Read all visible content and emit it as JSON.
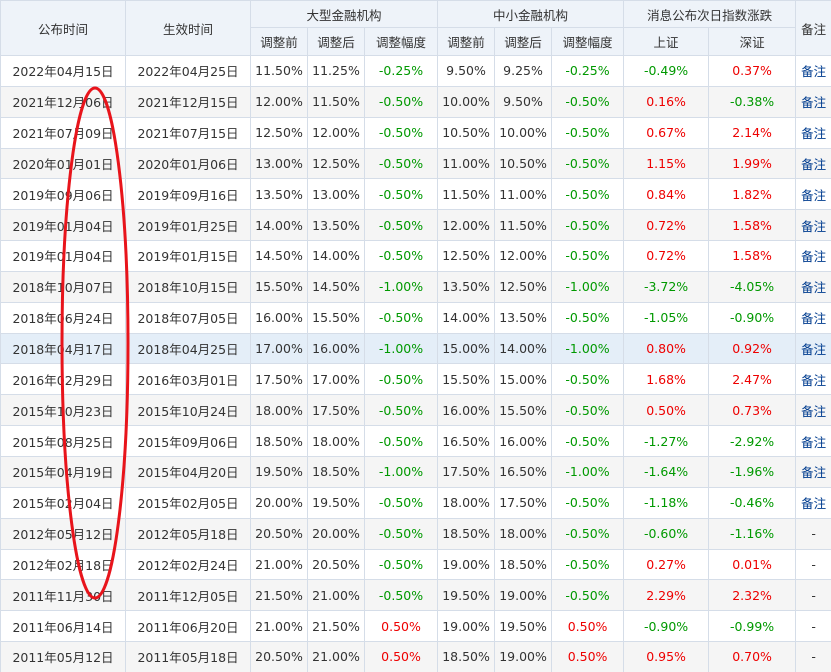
{
  "header": {
    "top": [
      "公布时间",
      "生效时间",
      "大型金融机构",
      "中小金融机构",
      "消息公布次日指数涨跌",
      "备注"
    ],
    "sub": [
      "调整前",
      "调整后",
      "调整幅度",
      "调整前",
      "调整后",
      "调整幅度",
      "上证",
      "深证"
    ]
  },
  "table": {
    "rows": [
      [
        "2022年04月15日",
        "2022年04月25日",
        "11.50%",
        "11.25%",
        "-0.25%",
        "9.50%",
        "9.25%",
        "-0.25%",
        "-0.49%",
        "0.37%",
        "备注"
      ],
      [
        "2021年12月06日",
        "2021年12月15日",
        "12.00%",
        "11.50%",
        "-0.50%",
        "10.00%",
        "9.50%",
        "-0.50%",
        "0.16%",
        "-0.38%",
        "备注"
      ],
      [
        "2021年07月09日",
        "2021年07月15日",
        "12.50%",
        "12.00%",
        "-0.50%",
        "10.50%",
        "10.00%",
        "-0.50%",
        "0.67%",
        "2.14%",
        "备注"
      ],
      [
        "2020年01月01日",
        "2020年01月06日",
        "13.00%",
        "12.50%",
        "-0.50%",
        "11.00%",
        "10.50%",
        "-0.50%",
        "1.15%",
        "1.99%",
        "备注"
      ],
      [
        "2019年09月06日",
        "2019年09月16日",
        "13.50%",
        "13.00%",
        "-0.50%",
        "11.50%",
        "11.00%",
        "-0.50%",
        "0.84%",
        "1.82%",
        "备注"
      ],
      [
        "2019年01月04日",
        "2019年01月25日",
        "14.00%",
        "13.50%",
        "-0.50%",
        "12.00%",
        "11.50%",
        "-0.50%",
        "0.72%",
        "1.58%",
        "备注"
      ],
      [
        "2019年01月04日",
        "2019年01月15日",
        "14.50%",
        "14.00%",
        "-0.50%",
        "12.50%",
        "12.00%",
        "-0.50%",
        "0.72%",
        "1.58%",
        "备注"
      ],
      [
        "2018年10月07日",
        "2018年10月15日",
        "15.50%",
        "14.50%",
        "-1.00%",
        "13.50%",
        "12.50%",
        "-1.00%",
        "-3.72%",
        "-4.05%",
        "备注"
      ],
      [
        "2018年06月24日",
        "2018年07月05日",
        "16.00%",
        "15.50%",
        "-0.50%",
        "14.00%",
        "13.50%",
        "-0.50%",
        "-1.05%",
        "-0.90%",
        "备注"
      ],
      [
        "2018年04月17日",
        "2018年04月25日",
        "17.00%",
        "16.00%",
        "-1.00%",
        "15.00%",
        "14.00%",
        "-1.00%",
        "0.80%",
        "0.92%",
        "备注"
      ],
      [
        "2016年02月29日",
        "2016年03月01日",
        "17.50%",
        "17.00%",
        "-0.50%",
        "15.50%",
        "15.00%",
        "-0.50%",
        "1.68%",
        "2.47%",
        "备注"
      ],
      [
        "2015年10月23日",
        "2015年10月24日",
        "18.00%",
        "17.50%",
        "-0.50%",
        "16.00%",
        "15.50%",
        "-0.50%",
        "0.50%",
        "0.73%",
        "备注"
      ],
      [
        "2015年08月25日",
        "2015年09月06日",
        "18.50%",
        "18.00%",
        "-0.50%",
        "16.50%",
        "16.00%",
        "-0.50%",
        "-1.27%",
        "-2.92%",
        "备注"
      ],
      [
        "2015年04月19日",
        "2015年04月20日",
        "19.50%",
        "18.50%",
        "-1.00%",
        "17.50%",
        "16.50%",
        "-1.00%",
        "-1.64%",
        "-1.96%",
        "备注"
      ],
      [
        "2015年02月04日",
        "2015年02月05日",
        "20.00%",
        "19.50%",
        "-0.50%",
        "18.00%",
        "17.50%",
        "-0.50%",
        "-1.18%",
        "-0.46%",
        "备注"
      ],
      [
        "2012年05月12日",
        "2012年05月18日",
        "20.50%",
        "20.00%",
        "-0.50%",
        "18.50%",
        "18.00%",
        "-0.50%",
        "-0.60%",
        "-1.16%",
        "-"
      ],
      [
        "2012年02月18日",
        "2012年02月24日",
        "21.00%",
        "20.50%",
        "-0.50%",
        "19.00%",
        "18.50%",
        "-0.50%",
        "0.27%",
        "0.01%",
        "-"
      ],
      [
        "2011年11月30日",
        "2011年12月05日",
        "21.50%",
        "21.00%",
        "-0.50%",
        "19.50%",
        "19.00%",
        "-0.50%",
        "2.29%",
        "2.32%",
        "-"
      ],
      [
        "2011年06月14日",
        "2011年06月20日",
        "21.00%",
        "21.50%",
        "0.50%",
        "19.00%",
        "19.50%",
        "0.50%",
        "-0.90%",
        "-0.99%",
        "-"
      ],
      [
        "2011年05月12日",
        "2011年05月18日",
        "20.50%",
        "21.00%",
        "0.50%",
        "18.50%",
        "19.00%",
        "0.50%",
        "0.95%",
        "0.70%",
        "-"
      ]
    ]
  }
}
